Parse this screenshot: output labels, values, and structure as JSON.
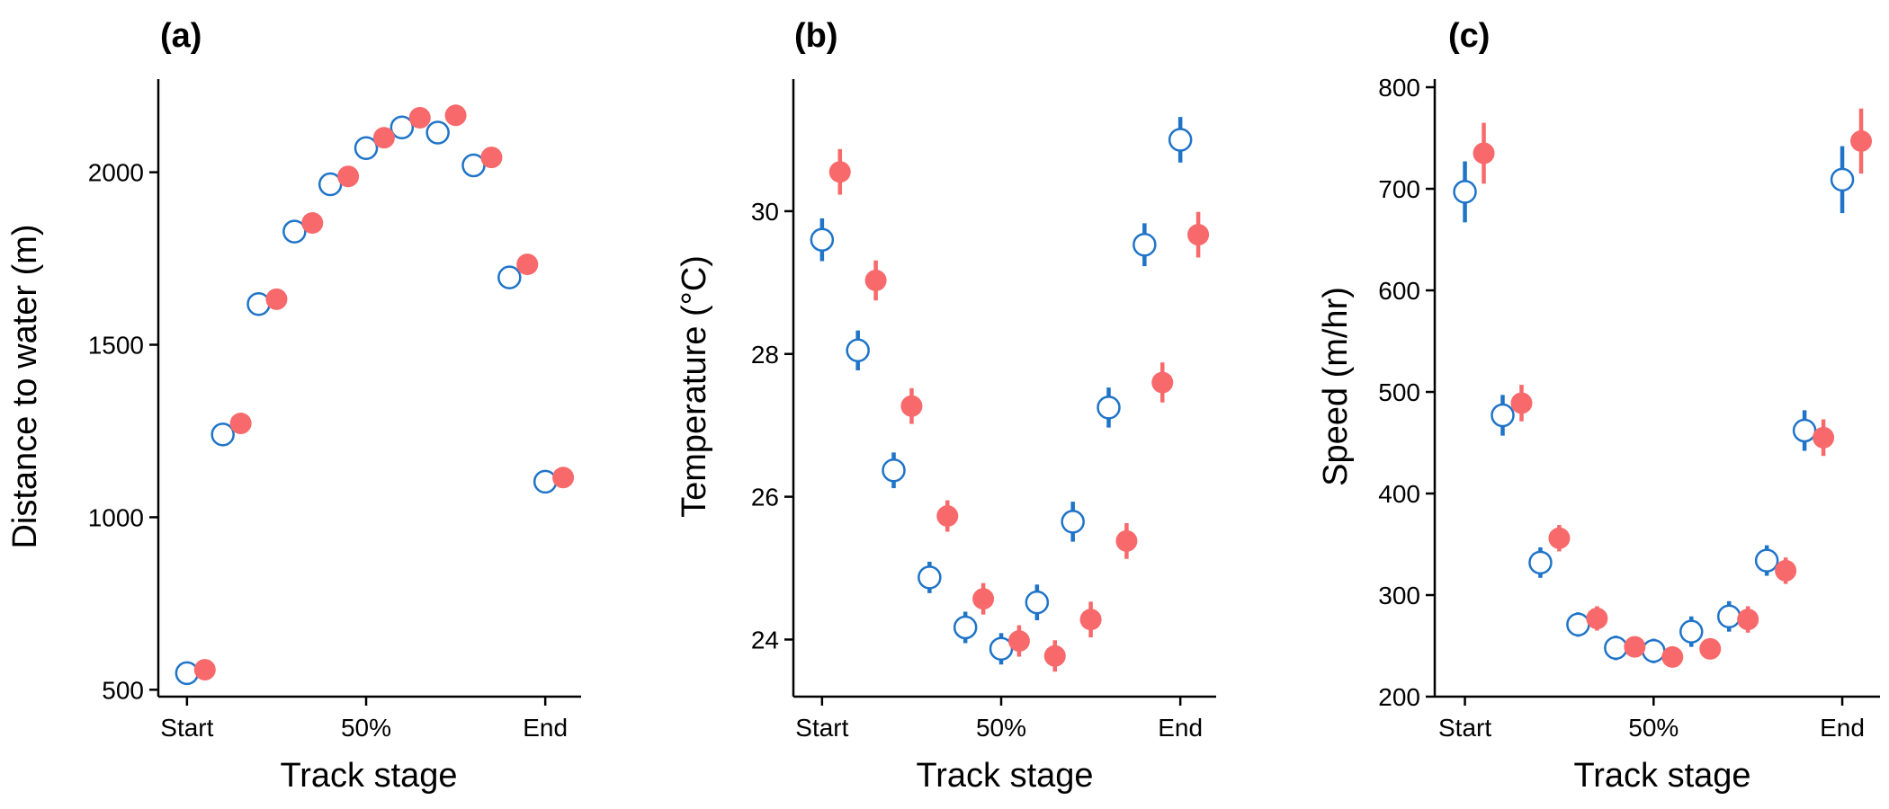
{
  "colors": {
    "open": "#1F74C8",
    "filled": "#F8696B",
    "axis": "#000000"
  },
  "chart_data": [
    {
      "type": "scatter",
      "panel_label": "(a)",
      "xlabel": "Track stage",
      "ylabel": "Distance to water (m)",
      "x_ticks": [
        {
          "x": 0,
          "label": "Start"
        },
        {
          "x": 50,
          "label": "50%"
        },
        {
          "x": 100,
          "label": "End"
        }
      ],
      "y_ticks": [
        500,
        1000,
        1500,
        2000
      ],
      "xlim": [
        -8,
        110
      ],
      "ylim": [
        480,
        2270
      ],
      "grid": false,
      "series": [
        {
          "style": "open",
          "points": [
            {
              "x": 0,
              "y": 548,
              "err": 10
            },
            {
              "x": 10,
              "y": 1240,
              "err": 15
            },
            {
              "x": 20,
              "y": 1618,
              "err": 15
            },
            {
              "x": 30,
              "y": 1828,
              "err": 20
            },
            {
              "x": 40,
              "y": 1965,
              "err": 25
            },
            {
              "x": 50,
              "y": 2070,
              "err": 30
            },
            {
              "x": 60,
              "y": 2130,
              "err": 30
            },
            {
              "x": 70,
              "y": 2115,
              "err": 30
            },
            {
              "x": 80,
              "y": 2020,
              "err": 20
            },
            {
              "x": 90,
              "y": 1695,
              "err": 15
            },
            {
              "x": 100,
              "y": 1103,
              "err": 10
            }
          ]
        },
        {
          "style": "filled",
          "points": [
            {
              "x": 5,
              "y": 558,
              "err": 10
            },
            {
              "x": 15,
              "y": 1272,
              "err": 15
            },
            {
              "x": 25,
              "y": 1632,
              "err": 15
            },
            {
              "x": 35,
              "y": 1853,
              "err": 15
            },
            {
              "x": 45,
              "y": 1988,
              "err": 15
            },
            {
              "x": 55,
              "y": 2100,
              "err": 20
            },
            {
              "x": 65,
              "y": 2158,
              "err": 20
            },
            {
              "x": 75,
              "y": 2165,
              "err": 25
            },
            {
              "x": 85,
              "y": 2043,
              "err": 20
            },
            {
              "x": 95,
              "y": 1733,
              "err": 15
            },
            {
              "x": 105,
              "y": 1115,
              "err": 10
            }
          ]
        }
      ]
    },
    {
      "type": "scatter",
      "panel_label": "(b)",
      "xlabel": "Track stage",
      "ylabel": "Temperature (°C)",
      "x_ticks": [
        {
          "x": 0,
          "label": "Start"
        },
        {
          "x": 50,
          "label": "50%"
        },
        {
          "x": 100,
          "label": "End"
        }
      ],
      "y_ticks": [
        24,
        26,
        28,
        30
      ],
      "xlim": [
        -8,
        110
      ],
      "ylim": [
        23.2,
        31.85
      ],
      "grid": false,
      "series": [
        {
          "style": "open",
          "points": [
            {
              "x": 0,
              "y": 29.6,
              "err": 0.3
            },
            {
              "x": 10,
              "y": 28.05,
              "err": 0.28
            },
            {
              "x": 20,
              "y": 26.37,
              "err": 0.25
            },
            {
              "x": 30,
              "y": 24.87,
              "err": 0.22
            },
            {
              "x": 40,
              "y": 24.17,
              "err": 0.22
            },
            {
              "x": 50,
              "y": 23.87,
              "err": 0.22
            },
            {
              "x": 60,
              "y": 24.52,
              "err": 0.25
            },
            {
              "x": 70,
              "y": 25.65,
              "err": 0.28
            },
            {
              "x": 80,
              "y": 27.25,
              "err": 0.28
            },
            {
              "x": 90,
              "y": 29.53,
              "err": 0.3
            },
            {
              "x": 100,
              "y": 31.0,
              "err": 0.32
            }
          ]
        },
        {
          "style": "filled",
          "points": [
            {
              "x": 5,
              "y": 30.55,
              "err": 0.32
            },
            {
              "x": 15,
              "y": 29.03,
              "err": 0.28
            },
            {
              "x": 25,
              "y": 27.27,
              "err": 0.25
            },
            {
              "x": 35,
              "y": 25.73,
              "err": 0.22
            },
            {
              "x": 45,
              "y": 24.57,
              "err": 0.22
            },
            {
              "x": 55,
              "y": 23.98,
              "err": 0.22
            },
            {
              "x": 65,
              "y": 23.77,
              "err": 0.22
            },
            {
              "x": 75,
              "y": 24.28,
              "err": 0.25
            },
            {
              "x": 85,
              "y": 25.38,
              "err": 0.25
            },
            {
              "x": 95,
              "y": 27.6,
              "err": 0.28
            },
            {
              "x": 105,
              "y": 29.67,
              "err": 0.32
            }
          ]
        }
      ]
    },
    {
      "type": "scatter",
      "panel_label": "(c)",
      "xlabel": "Track stage",
      "ylabel": "Speed (m/hr)",
      "x_ticks": [
        {
          "x": 0,
          "label": "Start"
        },
        {
          "x": 50,
          "label": "50%"
        },
        {
          "x": 100,
          "label": "End"
        }
      ],
      "y_ticks": [
        200,
        300,
        400,
        500,
        600,
        700,
        800
      ],
      "xlim": [
        -8,
        110
      ],
      "ylim": [
        200,
        808
      ],
      "grid": false,
      "series": [
        {
          "style": "open",
          "points": [
            {
              "x": 0,
              "y": 697,
              "err": 30
            },
            {
              "x": 10,
              "y": 477,
              "err": 20
            },
            {
              "x": 20,
              "y": 332,
              "err": 15
            },
            {
              "x": 30,
              "y": 271,
              "err": 12
            },
            {
              "x": 40,
              "y": 248,
              "err": 12
            },
            {
              "x": 50,
              "y": 245,
              "err": 12
            },
            {
              "x": 60,
              "y": 264,
              "err": 15
            },
            {
              "x": 70,
              "y": 279,
              "err": 15
            },
            {
              "x": 80,
              "y": 334,
              "err": 15
            },
            {
              "x": 90,
              "y": 462,
              "err": 20
            },
            {
              "x": 100,
              "y": 709,
              "err": 33
            }
          ]
        },
        {
          "style": "filled",
          "points": [
            {
              "x": 5,
              "y": 735,
              "err": 30
            },
            {
              "x": 15,
              "y": 489,
              "err": 18
            },
            {
              "x": 25,
              "y": 356,
              "err": 13
            },
            {
              "x": 35,
              "y": 277,
              "err": 12
            },
            {
              "x": 45,
              "y": 249,
              "err": 10
            },
            {
              "x": 55,
              "y": 239,
              "err": 10
            },
            {
              "x": 65,
              "y": 247,
              "err": 10
            },
            {
              "x": 75,
              "y": 276,
              "err": 13
            },
            {
              "x": 85,
              "y": 324,
              "err": 13
            },
            {
              "x": 95,
              "y": 455,
              "err": 18
            },
            {
              "x": 105,
              "y": 747,
              "err": 32
            }
          ]
        }
      ]
    }
  ]
}
